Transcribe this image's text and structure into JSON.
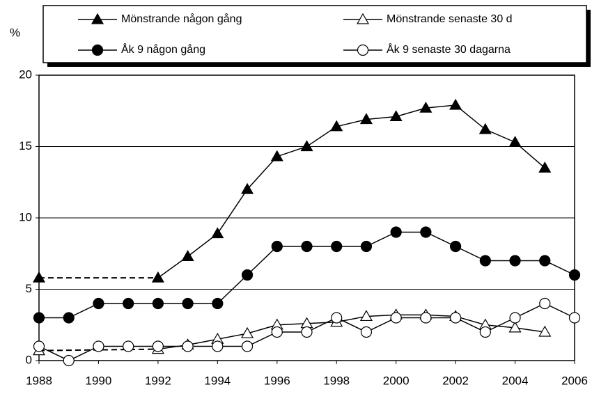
{
  "chart_data": {
    "type": "line",
    "y_label": "%",
    "x": [
      1988,
      1989,
      1990,
      1991,
      1992,
      1993,
      1994,
      1995,
      1996,
      1997,
      1998,
      1999,
      2000,
      2001,
      2002,
      2003,
      2004,
      2005,
      2006
    ],
    "xlim": [
      1988,
      2006
    ],
    "xticks": [
      1988,
      1990,
      1992,
      1994,
      1996,
      1998,
      2000,
      2002,
      2004,
      2006
    ],
    "ylim": [
      0,
      20
    ],
    "yticks": [
      0,
      5,
      10,
      15,
      20
    ],
    "grid": true,
    "legend": "top",
    "series": [
      {
        "name": "Mönstrande någon gång",
        "color": "#000000",
        "marker": "triangle",
        "filled": true,
        "values": [
          5.8,
          null,
          null,
          null,
          5.8,
          7.3,
          8.9,
          12,
          14.3,
          15,
          16.4,
          16.9,
          17.1,
          17.7,
          17.9,
          16.2,
          15.3,
          13.5,
          null
        ]
      },
      {
        "name": "Mönstrande senaste 30 d",
        "color": "#000000",
        "marker": "triangle",
        "filled": false,
        "values": [
          0.7,
          null,
          null,
          null,
          0.8,
          1.1,
          1.5,
          1.9,
          2.5,
          2.6,
          2.7,
          3.1,
          3.2,
          3.2,
          3.1,
          2.5,
          2.3,
          2.0,
          null
        ]
      },
      {
        "name": "Åk 9 någon gång",
        "color": "#000000",
        "marker": "circle",
        "filled": true,
        "values": [
          3,
          3,
          4,
          4,
          4,
          4,
          4,
          6,
          8,
          8,
          8,
          8,
          9,
          9,
          8,
          7,
          7,
          7,
          6
        ]
      },
      {
        "name": "Åk 9 senaste 30 dagarna",
        "color": "#000000",
        "marker": "circle",
        "filled": false,
        "values": [
          1,
          0,
          1,
          1,
          1,
          1,
          1,
          1,
          2,
          2,
          3,
          2,
          3,
          3,
          3,
          2,
          3,
          4,
          3
        ]
      }
    ]
  }
}
